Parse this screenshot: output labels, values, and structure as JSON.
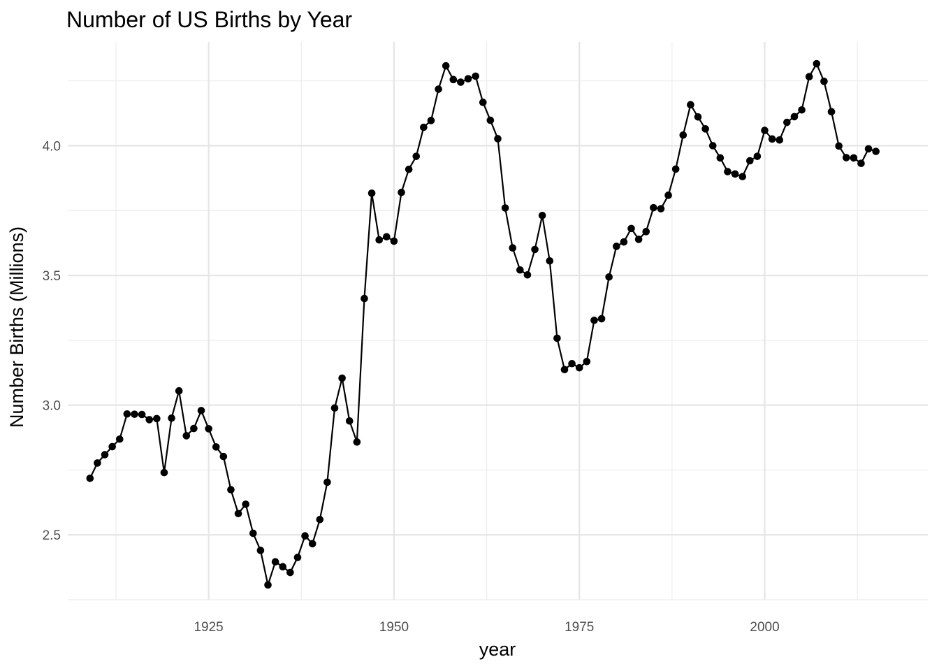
{
  "chart_data": {
    "type": "line",
    "title": "Number of US Births by Year",
    "xlabel": "year",
    "ylabel": "Number Births (Millions)",
    "xlim": [
      1906,
      2022
    ],
    "ylim": [
      2.25,
      4.4
    ],
    "x_ticks": [
      1925,
      1950,
      1975,
      2000
    ],
    "y_ticks": [
      2.5,
      3.0,
      3.5,
      4.0
    ],
    "x_tick_labels": [
      "1925",
      "1950",
      "1975",
      "2000"
    ],
    "y_tick_labels": [
      "2.5",
      "3.0",
      "3.5",
      "4.0"
    ],
    "grid": true,
    "legend": "none",
    "markers": true,
    "color": "#000000",
    "x": [
      1909,
      1910,
      1911,
      1912,
      1913,
      1914,
      1915,
      1916,
      1917,
      1918,
      1919,
      1920,
      1921,
      1922,
      1923,
      1924,
      1925,
      1926,
      1927,
      1928,
      1929,
      1930,
      1931,
      1932,
      1933,
      1934,
      1935,
      1936,
      1937,
      1938,
      1939,
      1940,
      1941,
      1942,
      1943,
      1944,
      1945,
      1946,
      1947,
      1948,
      1949,
      1950,
      1951,
      1952,
      1953,
      1954,
      1955,
      1956,
      1957,
      1958,
      1959,
      1960,
      1961,
      1962,
      1963,
      1964,
      1965,
      1966,
      1967,
      1968,
      1969,
      1970,
      1971,
      1972,
      1973,
      1974,
      1975,
      1976,
      1977,
      1978,
      1979,
      1980,
      1981,
      1982,
      1983,
      1984,
      1985,
      1986,
      1987,
      1988,
      1989,
      1990,
      1991,
      1992,
      1993,
      1994,
      1995,
      1996,
      1997,
      1998,
      1999,
      2000,
      2001,
      2002,
      2003,
      2004,
      2005,
      2006,
      2007,
      2008,
      2009,
      2010,
      2011,
      2012,
      2013,
      2014,
      2015
    ],
    "y": [
      2.718,
      2.777,
      2.809,
      2.84,
      2.869,
      2.966,
      2.965,
      2.964,
      2.944,
      2.948,
      2.74,
      2.95,
      3.055,
      2.882,
      2.91,
      2.979,
      2.909,
      2.839,
      2.802,
      2.674,
      2.582,
      2.618,
      2.506,
      2.44,
      2.307,
      2.396,
      2.377,
      2.355,
      2.413,
      2.496,
      2.466,
      2.559,
      2.703,
      2.989,
      3.104,
      2.939,
      2.858,
      3.411,
      3.817,
      3.637,
      3.649,
      3.632,
      3.82,
      3.909,
      3.959,
      4.071,
      4.097,
      4.218,
      4.308,
      4.255,
      4.245,
      4.258,
      4.268,
      4.167,
      4.098,
      4.027,
      3.76,
      3.606,
      3.521,
      3.502,
      3.6,
      3.731,
      3.556,
      3.258,
      3.137,
      3.16,
      3.144,
      3.168,
      3.327,
      3.333,
      3.494,
      3.612,
      3.629,
      3.681,
      3.639,
      3.669,
      3.761,
      3.757,
      3.809,
      3.91,
      4.041,
      4.158,
      4.111,
      4.065,
      4.0,
      3.953,
      3.9,
      3.891,
      3.881,
      3.942,
      3.959,
      4.059,
      4.026,
      4.022,
      4.09,
      4.112,
      4.138,
      4.266,
      4.316,
      4.248,
      4.131,
      3.999,
      3.954,
      3.953,
      3.932,
      3.988,
      3.978
    ]
  }
}
